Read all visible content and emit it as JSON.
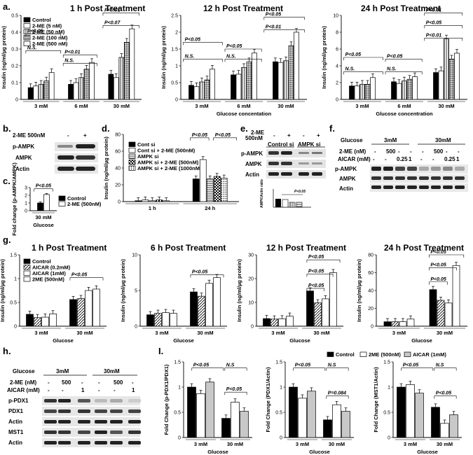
{
  "panel_labels": {
    "a": "a.",
    "b": "b.",
    "c": "c.",
    "d": "d.",
    "e": "e.",
    "f": "f.",
    "g": "g.",
    "h": "h.",
    "i": "I."
  },
  "legend_a": [
    "Control",
    "2-ME (5 nM)",
    "2-ME (50 nM)",
    "2-ME (100 nM)",
    "2-ME (500 nM)"
  ],
  "legend_c": [
    "Control",
    "2-ME (500nM)"
  ],
  "legend_d": [
    "Cont si",
    "Cont si  + 2-ME (500nM)",
    "AMPK si",
    "AMPK si + 2-ME (500nM)",
    "AMPK si + 2-ME (1000nM)"
  ],
  "legend_g": [
    "Control",
    "AICAR (0.2mM)",
    "AICAR (1mM)",
    "2ME (500nM)"
  ],
  "legend_i": [
    "Control",
    "2ME (500nM)",
    "AICAR (1mM)"
  ],
  "blot_b": {
    "header": "2-ME 500nM",
    "minus": "-",
    "plus": "+",
    "rows": [
      "p-AMPK",
      "AMPK",
      "Actin"
    ]
  },
  "blot_e": {
    "header": "2-ME",
    "header2": "500nM",
    "minus": "-",
    "plus": "+",
    "groups": [
      "Control si",
      "AMPK si"
    ],
    "rows": [
      "p-AMPK",
      "AMPK",
      "Actin"
    ],
    "mini_ylabel": "AMPK/Actin ratio",
    "mini_sig": "P<0.05"
  },
  "blot_f": {
    "glucose": "Glucose",
    "g3": "3mM",
    "g30": "30mM",
    "row_2me": "2-ME (nM)",
    "row_aicar": "AICAR (mM)",
    "vals_2me": [
      "-",
      "500",
      "-",
      "-",
      "-",
      "500",
      "-",
      "-"
    ],
    "vals_aicar": [
      "-",
      "-",
      "0.25",
      "1",
      "-",
      "-",
      "0.25",
      "1"
    ],
    "rows": [
      "p-AMPK",
      "AMPK",
      "Actin"
    ]
  },
  "blot_h": {
    "glucose": "Glucose",
    "g3": "3mM",
    "g30": "30mM",
    "row_2me": "2-ME (nM)",
    "row_aicar": "AICAR (mM)",
    "vals_2me": [
      "-",
      "500",
      "-",
      "-",
      "500",
      "-"
    ],
    "vals_aicar": [
      "-",
      "-",
      "1",
      "-",
      "-",
      "1"
    ],
    "rows": [
      "p-PDX1",
      "PDX1",
      "Actin",
      "MST1",
      "Actin"
    ]
  },
  "chart_data": [
    {
      "id": "a1",
      "type": "bar",
      "title": "1 h Post Treatment",
      "ylabel": "Insulin (ng/ml/µg protein)",
      "xlabel": "",
      "categories": [
        "3 mM",
        "6 mM",
        "30 mM"
      ],
      "ylim": [
        0,
        0.5
      ],
      "yticks": [
        "0",
        "0.1",
        "0.2",
        "0.3",
        "0.4",
        "0.5"
      ],
      "series": [
        {
          "name": "Control",
          "values": [
            0.07,
            0.09,
            0.15
          ]
        },
        {
          "name": "2-ME (5 nM)",
          "values": [
            0.08,
            0.1,
            0.13
          ]
        },
        {
          "name": "2-ME (50 nM)",
          "values": [
            0.09,
            0.13,
            0.25
          ]
        },
        {
          "name": "2-ME (100 nM)",
          "values": [
            0.11,
            0.18,
            0.34
          ]
        },
        {
          "name": "2-ME (500 nM)",
          "values": [
            0.16,
            0.22,
            0.42
          ]
        }
      ],
      "sig": [
        "P<0.05",
        "N.S.",
        "P<0.01",
        "N.S.",
        "P<0.07",
        "P<0.01"
      ]
    },
    {
      "id": "a2",
      "type": "bar",
      "title": "12 h Post Treatment",
      "ylabel": "Insulin (ng/ml/µg protein)",
      "xlabel": "Glucose concentation",
      "categories": [
        "3 mM",
        "6 mM",
        "30 mM"
      ],
      "ylim": [
        0,
        2.5
      ],
      "yticks": [
        "0",
        "0.5",
        "1",
        "1.5",
        "2",
        "2.5"
      ],
      "series": [
        {
          "name": "Control",
          "values": [
            0.42,
            0.73,
            1.12
          ]
        },
        {
          "name": "2-ME (5 nM)",
          "values": [
            0.38,
            0.75,
            1.1
          ]
        },
        {
          "name": "2-ME (50 nM)",
          "values": [
            0.52,
            0.95,
            1.15
          ]
        },
        {
          "name": "2-ME (100 nM)",
          "values": [
            0.58,
            1.12,
            1.6
          ]
        },
        {
          "name": "2-ME (500 nM)",
          "values": [
            0.9,
            1.38,
            2.0
          ]
        }
      ],
      "sig": [
        "P<0.05",
        "N.S.",
        "P<0.05",
        "N.S.",
        "P<0.01",
        "P<0.05"
      ]
    },
    {
      "id": "a3",
      "type": "bar",
      "title": "24 h Post Treatment",
      "ylabel": "Insulin (ng/ml/µg protein)",
      "xlabel": "Glucose concentration",
      "categories": [
        "3 mM",
        "6 mM",
        "30 mM"
      ],
      "ylim": [
        0,
        10
      ],
      "yticks": [
        "0",
        "2",
        "4",
        "6",
        "8",
        "10"
      ],
      "series": [
        {
          "name": "Control",
          "values": [
            1.6,
            2.1,
            3.2
          ]
        },
        {
          "name": "2-ME (5 nM)",
          "values": [
            1.6,
            1.9,
            3.4
          ]
        },
        {
          "name": "2-ME (50 nM)",
          "values": [
            1.8,
            2.2,
            7.2
          ]
        },
        {
          "name": "2-ME (100 nM)",
          "values": [
            1.8,
            2.4,
            4.8
          ]
        },
        {
          "name": "2-ME (500 nM)",
          "values": [
            2.6,
            2.7,
            5.5
          ]
        }
      ],
      "sig": [
        "P<0.05",
        "N.S.",
        "P<0.05",
        "N.S.",
        "P<0.01",
        "P<0.05",
        "P<0.01"
      ]
    },
    {
      "id": "c",
      "type": "bar",
      "title": "",
      "ylabel": "Fold change (p-AMPK/AMPK)",
      "xlabel": "Glucose",
      "categories": [
        "30 mM"
      ],
      "ylim": [
        0,
        3
      ],
      "yticks": [
        "0",
        "1",
        "2",
        "3"
      ],
      "series": [
        {
          "name": "Control",
          "values": [
            1.0
          ]
        },
        {
          "name": "2-ME (500nM)",
          "values": [
            2.1
          ]
        }
      ],
      "sig": [
        "P<0.05"
      ]
    },
    {
      "id": "d",
      "type": "bar",
      "title": "",
      "ylabel": "Insulin (ng/ml/µg protein)",
      "xlabel": "",
      "categories": [
        "1 h",
        "24 h"
      ],
      "ylim": [
        0,
        80
      ],
      "yticks": [
        "0",
        "20",
        "40",
        "60",
        "80"
      ],
      "series": [
        {
          "name": "Cont si",
          "values": [
            1,
            27
          ]
        },
        {
          "name": "Cont si  + 2-ME (500nM)",
          "values": [
            2,
            50
          ]
        },
        {
          "name": "AMPK si",
          "values": [
            1,
            27
          ]
        },
        {
          "name": "AMPK si + 2-ME (500nM)",
          "values": [
            2,
            30
          ]
        },
        {
          "name": "AMPK si + 2-ME (1000nM)",
          "values": [
            1,
            28
          ]
        }
      ],
      "sig": [
        "P<0.05",
        "P<0.05"
      ]
    },
    {
      "id": "g1",
      "type": "bar",
      "title": "1 h Post Treatment",
      "ylabel": "Insulin (ng/ml/µg protein)",
      "xlabel": "Glucose",
      "categories": [
        "3 mM",
        "30 mM"
      ],
      "ylim": [
        0,
        1.5
      ],
      "yticks": [
        "0",
        "0.5",
        "1",
        "1.5"
      ],
      "series": [
        {
          "name": "Control",
          "values": [
            0.25,
            0.56
          ]
        },
        {
          "name": "AICAR (0.2mM)",
          "values": [
            0.18,
            0.58
          ]
        },
        {
          "name": "AICAR (1mM)",
          "values": [
            0.19,
            0.75
          ]
        },
        {
          "name": "2ME (500nM)",
          "values": [
            0.26,
            0.78
          ]
        }
      ],
      "sig": [
        "P<0.05"
      ]
    },
    {
      "id": "g2",
      "type": "bar",
      "title": "6 h Post Treatment",
      "ylabel": "Insulin (ng/ml/µg protein)",
      "xlabel": "Glucose",
      "categories": [
        "3 mM",
        "30 mM"
      ],
      "ylim": [
        0,
        10
      ],
      "yticks": [
        "0",
        "5",
        "10"
      ],
      "series": [
        {
          "name": "Control",
          "values": [
            1.6,
            4.8
          ]
        },
        {
          "name": "AICAR (0.2mM)",
          "values": [
            1.8,
            4.2
          ]
        },
        {
          "name": "AICAR (1mM)",
          "values": [
            1.9,
            6.0
          ]
        },
        {
          "name": "2ME (500nM)",
          "values": [
            1.8,
            6.8
          ]
        }
      ],
      "sig": [
        "P<0.05"
      ]
    },
    {
      "id": "g3",
      "type": "bar",
      "title": "12 h Post Treatment",
      "ylabel": "Insulin (ng/ml/µg protein)",
      "xlabel": "Glucose",
      "categories": [
        "3 mM",
        "30 mM"
      ],
      "ylim": [
        0,
        30
      ],
      "yticks": [
        "0",
        "10",
        "20",
        "30"
      ],
      "series": [
        {
          "name": "Control",
          "values": [
            3.2,
            14.8
          ]
        },
        {
          "name": "AICAR (0.2mM)",
          "values": [
            3,
            9.8
          ]
        },
        {
          "name": "AICAR (1mM)",
          "values": [
            3.1,
            11.5
          ]
        },
        {
          "name": "2ME (500nM)",
          "values": [
            4.2,
            22.5
          ]
        }
      ],
      "sig": [
        "P<0.05",
        "P<0.05",
        "P<0.05"
      ]
    },
    {
      "id": "g4",
      "type": "bar",
      "title": "24 h Post Treatment",
      "ylabel": "Insulin (ng/ml/µg protein)",
      "xlabel": "Glucose",
      "categories": [
        "3 mM",
        "30 mM"
      ],
      "ylim": [
        0,
        80
      ],
      "yticks": [
        "0",
        "20",
        "40",
        "60",
        "80"
      ],
      "series": [
        {
          "name": "Control",
          "values": [
            5,
            41
          ]
        },
        {
          "name": "AICAR (0.2mM)",
          "values": [
            5,
            29
          ]
        },
        {
          "name": "AICAR (1mM)",
          "values": [
            5,
            26
          ]
        },
        {
          "name": "2ME (500nM)",
          "values": [
            8,
            68
          ]
        }
      ],
      "sig": [
        "P<0.05",
        "P<0.05",
        "P<0.05"
      ]
    },
    {
      "id": "i1",
      "type": "bar",
      "title": "",
      "ylabel": "Fold Change (p-PDX1/PDX1)",
      "xlabel": "Glucose",
      "categories": [
        "3 mM",
        "30 mM"
      ],
      "ylim": [
        0,
        1.5
      ],
      "yticks": [
        "0",
        "0.5",
        "1",
        "1.5"
      ],
      "series": [
        {
          "name": "Control",
          "values": [
            1.0,
            0.38
          ]
        },
        {
          "name": "2ME (500nM)",
          "values": [
            0.87,
            0.7
          ]
        },
        {
          "name": "AICAR (1mM)",
          "values": [
            1.1,
            0.52
          ]
        }
      ],
      "sig": [
        "P<0.05",
        "N.S",
        "P<0.05"
      ]
    },
    {
      "id": "i2",
      "type": "bar",
      "title": "",
      "ylabel": "Fold Change (PDX1/Actin)",
      "xlabel": "Glucose",
      "categories": [
        "3 mM",
        "30 mM"
      ],
      "ylim": [
        0,
        1.5
      ],
      "yticks": [
        "0",
        "0.5",
        "1",
        "1.5"
      ],
      "series": [
        {
          "name": "Control",
          "values": [
            1.0,
            0.35
          ]
        },
        {
          "name": "2ME (500nM)",
          "values": [
            0.78,
            0.65
          ]
        },
        {
          "name": "AICAR (1mM)",
          "values": [
            0.92,
            0.52
          ]
        }
      ],
      "sig": [
        "P<0.05",
        "N.S",
        "P=0.084"
      ]
    },
    {
      "id": "i3",
      "type": "bar",
      "title": "",
      "ylabel": "Fold Change (MST1/Actin)",
      "xlabel": "Glucose",
      "categories": [
        "3 mM",
        "30 mM"
      ],
      "ylim": [
        0,
        1.5
      ],
      "yticks": [
        "0",
        "0.5",
        "1",
        "1.5"
      ],
      "series": [
        {
          "name": "Control",
          "values": [
            1.0,
            0.6
          ]
        },
        {
          "name": "2ME (500nM)",
          "values": [
            1.05,
            0.28
          ]
        },
        {
          "name": "AICAR (1mM)",
          "values": [
            0.88,
            0.45
          ]
        }
      ],
      "sig": [
        "P<0.05",
        "N.S",
        "P<0.05"
      ]
    }
  ]
}
